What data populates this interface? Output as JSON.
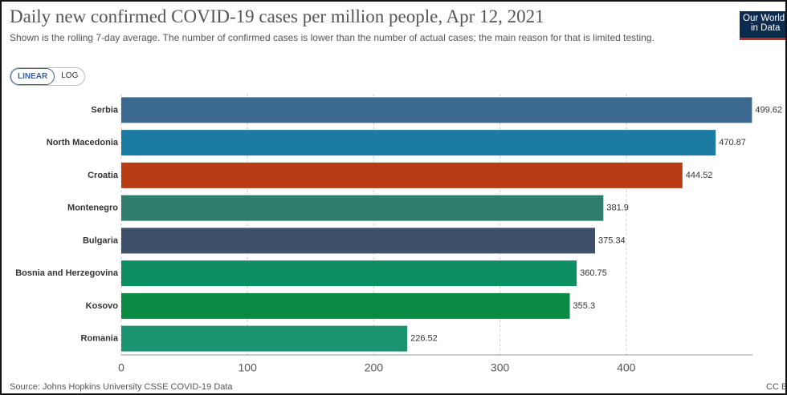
{
  "chart_data": {
    "type": "bar",
    "orientation": "horizontal",
    "title": "Daily new confirmed COVID-19 cases per million people, Apr 12, 2021",
    "subtitle": "Shown is the rolling 7-day average. The number of confirmed cases is lower than the number of actual cases; the main reason for that is limited testing.",
    "categories": [
      "Serbia",
      "North Macedonia",
      "Croatia",
      "Montenegro",
      "Bulgaria",
      "Bosnia and Herzegovina",
      "Kosovo",
      "Romania"
    ],
    "values": [
      499.62,
      470.87,
      444.52,
      381.9,
      375.34,
      360.75,
      355.3,
      226.52
    ],
    "colors": [
      "#3c6990",
      "#1b7ba2",
      "#b83b14",
      "#2f7d6c",
      "#3e4f68",
      "#0f8d63",
      "#0b8a45",
      "#1a9371"
    ],
    "xlim": [
      0,
      500
    ],
    "xticks": [
      0,
      100,
      200,
      300,
      400
    ],
    "grid": true
  },
  "ui": {
    "buttons": [
      "LINEAR",
      "LOG"
    ],
    "logo": [
      "Our World",
      "in Data"
    ],
    "source": "Source: Johns Hopkins University CSSE COVID-19 Data",
    "license": "CC BY"
  }
}
